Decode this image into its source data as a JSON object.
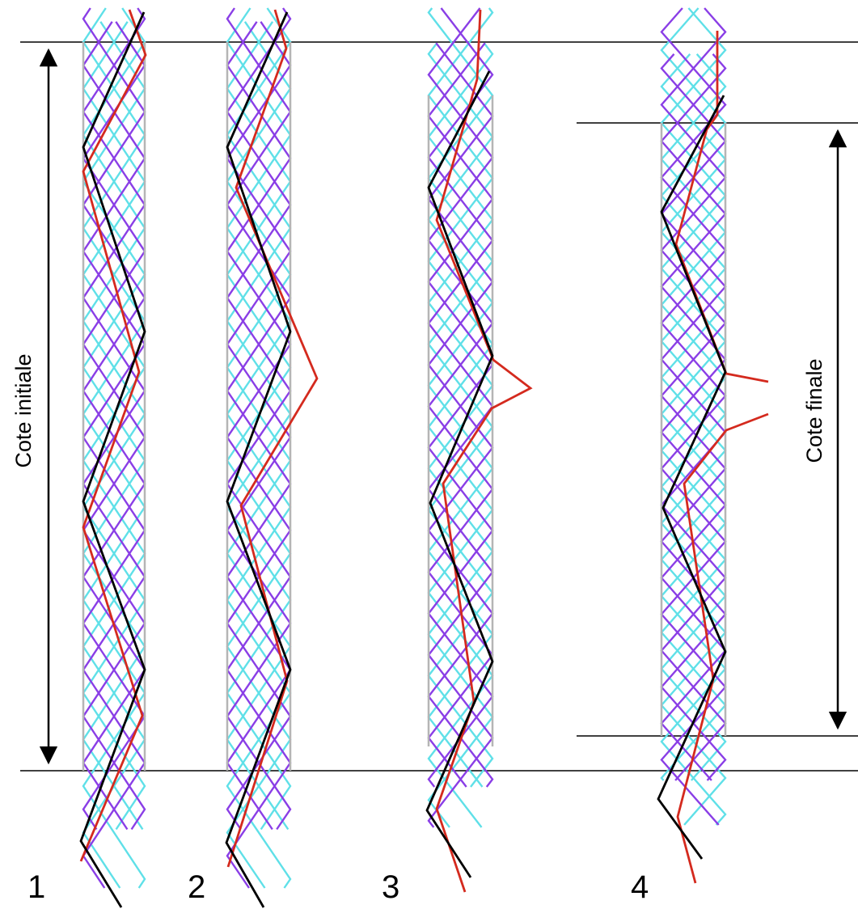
{
  "labels": {
    "initial_height": "Cote initiale",
    "final_height": "Cote finale"
  },
  "stages": [
    {
      "number": "1"
    },
    {
      "number": "2"
    },
    {
      "number": "3"
    },
    {
      "number": "4"
    }
  ],
  "colors": {
    "fiber_cyan": "#5fe0e8",
    "fiber_purple": "#8a3ee6",
    "trace_black": "#000000",
    "trace_red": "#d42a1e",
    "rail_gray": "#b5b5b5"
  }
}
